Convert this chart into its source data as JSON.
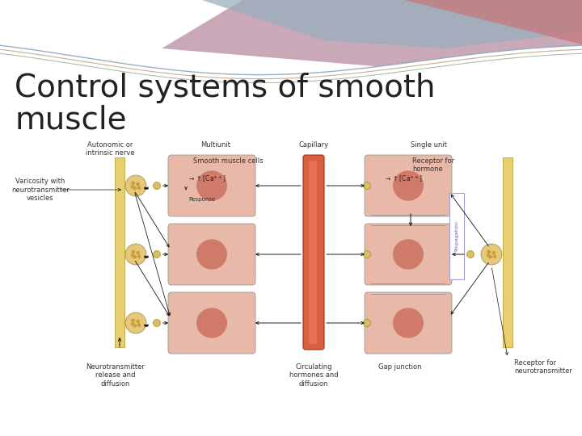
{
  "title_line1": "Control systems of smooth",
  "title_line2": "muscle",
  "title_fontsize": 28,
  "title_color": "#222222",
  "bg_color": "#ffffff",
  "nerve_color": "#e8d070",
  "nerve_border": "#b8a040",
  "muscle_color": "#e8b8a8",
  "muscle_dark": "#cc7060",
  "varicosity_color": "#e8c878",
  "capillary_color": "#d86040",
  "receptor_color": "#d8c060",
  "arrow_color": "#111111",
  "text_color": "#333333",
  "label_fontsize": 6.0,
  "propagation_box_color": "#a0a0dd",
  "labels": {
    "autonomic": "Autonomic or\nintrinsic nerve",
    "multiunit": "Multiunit",
    "capillary": "Capillary",
    "single_unit": "Single unit",
    "smooth_muscle_cells": "Smooth muscle cells",
    "receptor_hormone": "Receptor for\nhormone",
    "varicosity": "Varicosity with\nneurotransmitter\nvesicles",
    "ca_left": "→ ↑[Ca⁺⁺]",
    "response": "Response",
    "ca_right": "→ ↑[Ca⁺⁺]",
    "propagation": "Propagation",
    "neurotransmitter": "Neurotransmitter\nrelease and\ndiffusion",
    "circulating": "Circulating\nhormones and\ndiffusion",
    "gap_junction": "Gap junction",
    "receptor_neuro": "Receptor for\nneurotransmitter"
  }
}
